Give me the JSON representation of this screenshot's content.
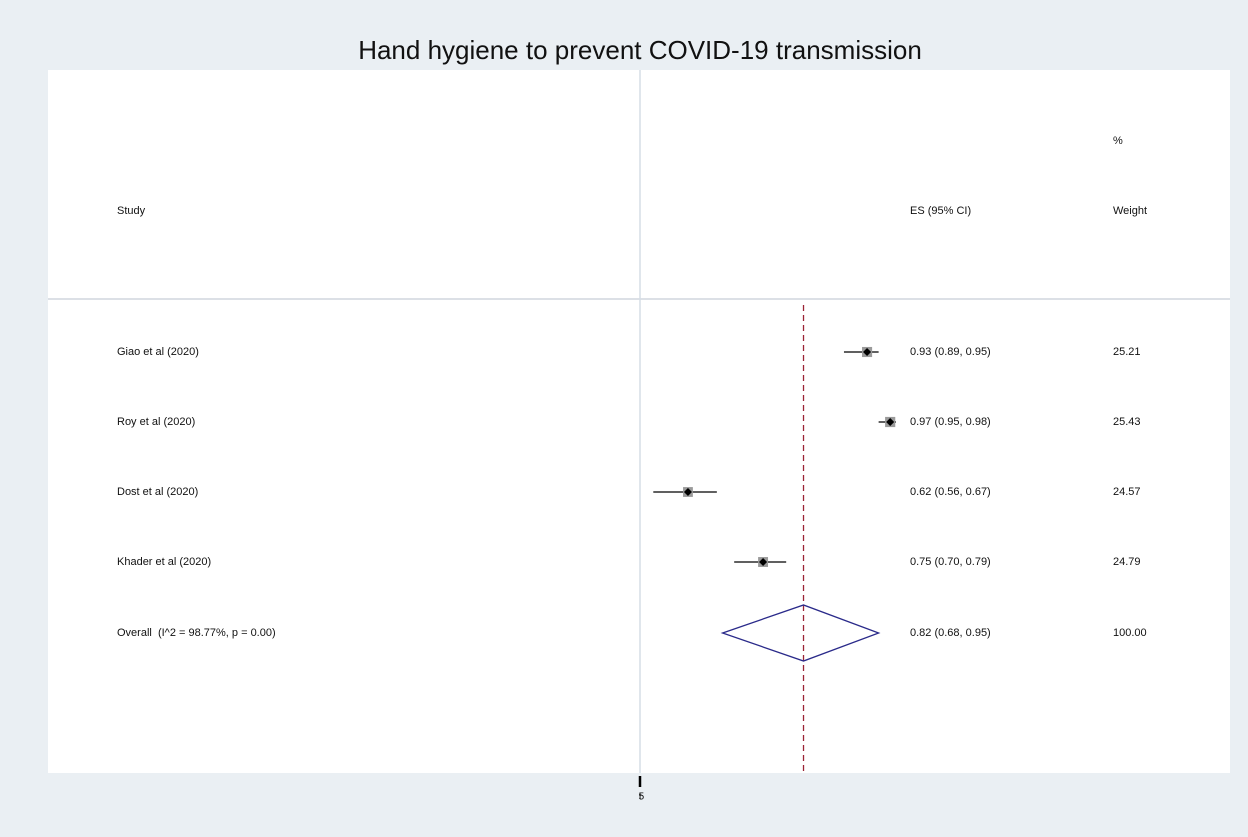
{
  "chart_data": {
    "type": "forest",
    "title": "Hand hygiene to prevent COVID-19 transmission",
    "headers": {
      "study": "Study",
      "es": "ES (95% CI)",
      "weight_top": "%",
      "weight": "Weight"
    },
    "studies": {
      "names": [
        "Giao et al (2020)",
        "Roy et al (2020)",
        "Dost et al (2020)",
        "Khader et al (2020)"
      ],
      "es": [
        0.93,
        0.97,
        0.62,
        0.75
      ],
      "ci_low": [
        0.89,
        0.95,
        0.56,
        0.7
      ],
      "ci_high": [
        0.95,
        0.98,
        0.67,
        0.79
      ],
      "es_labels": [
        "0.93 (0.89, 0.95)",
        "0.97 (0.95, 0.98)",
        "0.62 (0.56, 0.67)",
        "0.75 (0.70, 0.79)"
      ],
      "weights": [
        25.21,
        25.43,
        24.57,
        24.79
      ],
      "weight_labels": [
        "25.21",
        "25.43",
        "24.57",
        "24.79"
      ]
    },
    "overall": {
      "name": "Overall  (I^2 = 98.77%, p = 0.00)",
      "es": 0.82,
      "ci_low": 0.68,
      "ci_high": 0.95,
      "es_label": "0.82 (0.68, 0.95)",
      "weight": 100,
      "weight_label": "100.00"
    },
    "xlim": [
      0.537,
      0.987
    ],
    "xticks": [
      {
        "value": 0.537,
        "label": "t5"
      }
    ],
    "colors": {
      "title": "#1f3564",
      "overall_line": "#9b2335",
      "diamond": "#2a2a8a",
      "marker": "#000000",
      "box": "#9a9a9a",
      "null_line": "#d6dee6"
    }
  }
}
